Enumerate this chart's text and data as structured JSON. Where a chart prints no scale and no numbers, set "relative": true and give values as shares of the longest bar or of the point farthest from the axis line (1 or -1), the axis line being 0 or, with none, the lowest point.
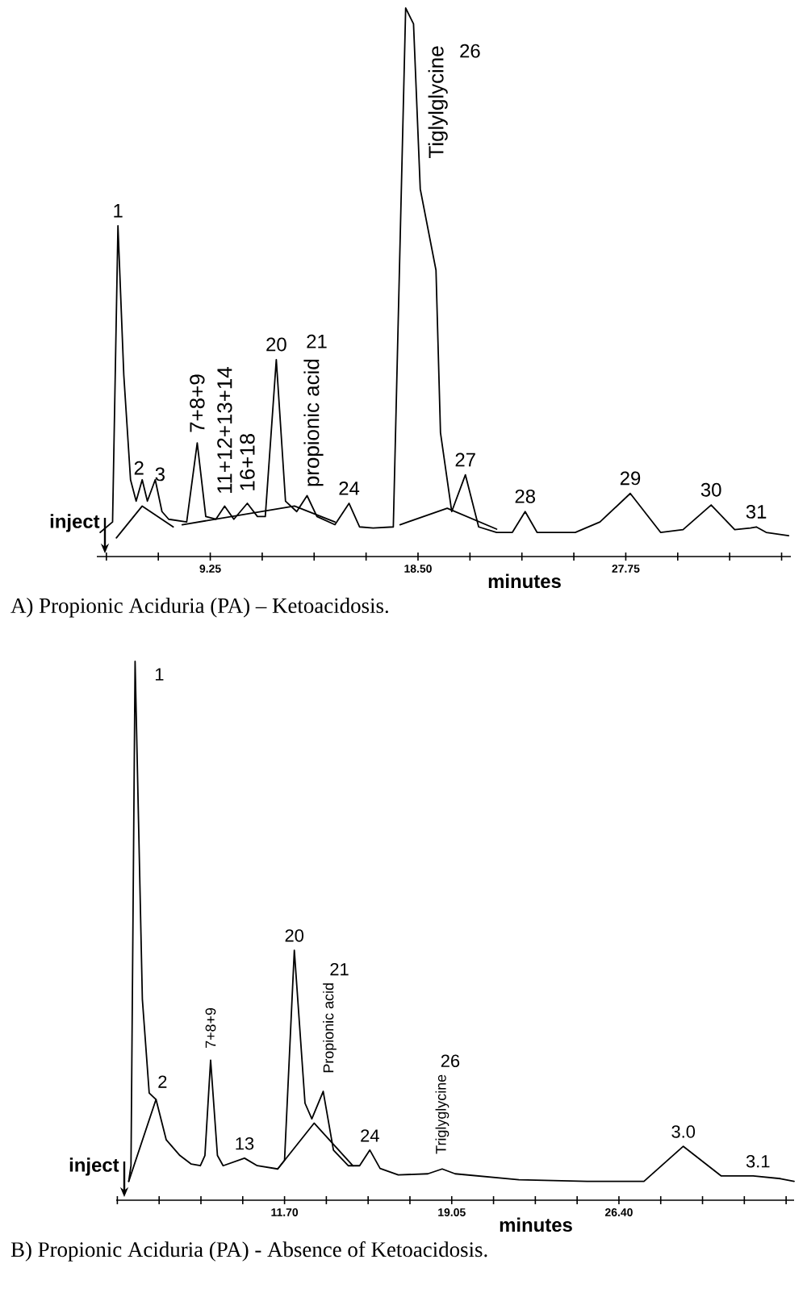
{
  "chart_data": [
    {
      "type": "line",
      "title": "A) Propionic Aciduria (PA) – Ketoacidosis.",
      "xlabel": "minutes",
      "relative": true,
      "xlim": [
        4.2,
        35.1
      ],
      "xticks": [
        {
          "value": 4.625,
          "label": null
        },
        {
          "value": 6.9375,
          "label": null
        },
        9.25,
        {
          "value": 11.5625,
          "label": null
        },
        {
          "value": 13.875,
          "label": null
        },
        {
          "value": 16.1875,
          "label": null
        },
        {
          "value": 18.5,
          "label": "18.50"
        },
        {
          "value": 20.8125,
          "label": null
        },
        {
          "value": 23.125,
          "label": null
        },
        {
          "value": 25.4375,
          "label": null
        },
        27.75,
        {
          "value": 30.0625,
          "label": null
        },
        {
          "value": 32.375,
          "label": null
        },
        {
          "value": 34.6875,
          "label": null
        }
      ],
      "series": [
        {
          "color": "#000000",
          "x": [
            4.35,
            4.9,
            5.14,
            5.4,
            5.7,
            5.95,
            6.22,
            6.45,
            6.8,
            7.1,
            7.4,
            8.2,
            8.67,
            9.05,
            9.5,
            9.89,
            10.3,
            10.9,
            11.35,
            11.7,
            12.19,
            12.6,
            13.1,
            13.56,
            14.0,
            14.8,
            15.43,
            15.9,
            16.5,
            17.4,
            17.95,
            18.3,
            18.6,
            19.3,
            19.5,
            20.0,
            20.61,
            21.2,
            22.0,
            22.7,
            23.27,
            23.8,
            25.5,
            26.6,
            27.95,
            29.3,
            30.3,
            31.55,
            32.6,
            33.3,
            33.56,
            34.0,
            35.0
          ],
          "values": [
            0.044,
            0.063,
            0.603,
            0.331,
            0.14,
            0.101,
            0.14,
            0.101,
            0.14,
            0.082,
            0.068,
            0.063,
            0.207,
            0.073,
            0.068,
            0.092,
            0.068,
            0.097,
            0.073,
            0.073,
            0.359,
            0.101,
            0.082,
            0.111,
            0.073,
            0.058,
            0.097,
            0.054,
            0.052,
            0.054,
            1.0,
            0.971,
            0.67,
            0.522,
            0.226,
            0.082,
            0.149,
            0.054,
            0.044,
            0.044,
            0.082,
            0.044,
            0.044,
            0.063,
            0.115,
            0.044,
            0.049,
            0.094,
            0.049,
            0.052,
            0.054,
            0.044,
            0.038
          ]
        },
        {
          "color": "#000000",
          "x": [
            5.07,
            6.22,
            7.6,
            7.8,
            8.0,
            13.0,
            14.8,
            16.0,
            17.7,
            19.8,
            22.0
          ],
          "values": [
            0.034,
            0.092,
            0.054,
            null,
            0.058,
            0.092,
            0.063,
            null,
            0.058,
            0.088,
            0.05
          ]
        }
      ],
      "annotations": [
        "inject",
        {
          "text": "1",
          "x": 5.14,
          "y": 0.603
        },
        {
          "text": "2",
          "x": 6.22,
          "y": 0.14
        },
        {
          "text": "3",
          "x": 6.8,
          "y": 0.14
        },
        {
          "text": "7+8+9",
          "x": 8.67,
          "y": 0.207
        },
        {
          "text": "11+12+13+14",
          "x": 9.89,
          "y": 0.092
        },
        {
          "text": "16+18",
          "x": 10.9,
          "y": 0.097
        },
        {
          "text": "20",
          "x": 12.19,
          "y": 0.359
        },
        "21",
        {
          "text": "propionic acid",
          "x": 13.56,
          "y": 0.111
        },
        {
          "text": "24",
          "x": 15.43,
          "y": 0.097
        },
        {
          "text": "Tiglylglycine",
          "x": 17.95,
          "y": 1.0
        },
        "26",
        {
          "text": "27",
          "x": 20.61,
          "y": 0.149
        },
        {
          "text": "28",
          "x": 23.27,
          "y": 0.082
        },
        {
          "text": "29",
          "x": 27.95,
          "y": 0.115
        },
        {
          "text": "30",
          "x": 31.55,
          "y": 0.094
        },
        {
          "text": "31",
          "x": 33.56,
          "y": 0.054
        }
      ]
    },
    {
      "type": "line",
      "title": "B) Propionic Aciduria (PA) - Absence of Ketoacidosis.",
      "xlabel": "minutes",
      "relative": true,
      "xlim": [
        4.3,
        34.1
      ],
      "xticks": [
        {
          "value": 4.35,
          "label": null
        },
        {
          "value": 6.1875,
          "label": null
        },
        {
          "value": 8.025,
          "label": null
        },
        {
          "value": 9.8625,
          "label": null
        },
        {
          "value": 11.7,
          "label": "11.70"
        },
        {
          "value": 13.5375,
          "label": null
        },
        {
          "value": 15.375,
          "label": null
        },
        {
          "value": 17.2125,
          "label": null
        },
        19.05,
        {
          "value": 20.8875,
          "label": null
        },
        {
          "value": 22.725,
          "label": null
        },
        {
          "value": 24.5625,
          "label": null
        },
        {
          "value": 26.4,
          "label": "26.40"
        },
        {
          "value": 28.2375,
          "label": null
        },
        {
          "value": 30.075,
          "label": null
        },
        {
          "value": 31.9125,
          "label": null
        },
        {
          "value": 33.75,
          "label": null
        }
      ],
      "series": [
        {
          "color": "#000000",
          "x": [
            4.85,
            4.95,
            5.13,
            5.45,
            5.75,
            6.05,
            6.5,
            7.1,
            7.6,
            8.0,
            8.2,
            8.45,
            8.75,
            9.0,
            9.94,
            10.5,
            11.4,
            11.7,
            12.13,
            12.6,
            12.9,
            13.4,
            13.85,
            14.5,
            15.0,
            15.45,
            15.9,
            16.7,
            18.0,
            18.63,
            19.2,
            22.0,
            25.0,
            27.5,
            29.23,
            30.9,
            32.3,
            33.5,
            34.1
          ],
          "values": [
            0.035,
            0.064,
            1.0,
            0.373,
            0.199,
            0.187,
            0.112,
            0.083,
            0.067,
            0.064,
            0.083,
            0.26,
            0.083,
            0.064,
            0.078,
            0.064,
            0.058,
            0.074,
            0.464,
            0.18,
            0.151,
            0.202,
            0.093,
            0.064,
            0.064,
            0.093,
            0.059,
            0.047,
            0.049,
            0.058,
            0.049,
            0.038,
            0.035,
            0.035,
            0.1,
            0.045,
            0.045,
            0.04,
            0.035
          ]
        },
        {
          "color": "#000000",
          "x": [
            4.85,
            6.05,
            8.0,
            11.4,
            13.0,
            14.7
          ],
          "values": [
            0.035,
            0.187,
            null,
            0.058,
            0.143,
            0.064
          ]
        }
      ],
      "annotations": [
        "inject",
        {
          "text": "1",
          "x": 5.13,
          "y": 1.0
        },
        {
          "text": "2",
          "x": 6.05,
          "y": 0.187
        },
        {
          "text": "7+8+9",
          "x": 8.45,
          "y": 0.26
        },
        {
          "text": "13",
          "x": 9.94,
          "y": 0.078
        },
        {
          "text": "20",
          "x": 12.13,
          "y": 0.464
        },
        "21",
        {
          "text": "Propionic acid",
          "x": 13.4,
          "y": 0.202
        },
        {
          "text": "24",
          "x": 15.45,
          "y": 0.093
        },
        {
          "text": "Triglyglycine",
          "x": 18.63,
          "y": 0.058
        },
        "26",
        {
          "text": "3.0",
          "x": 29.23,
          "y": 0.1
        },
        {
          "text": "3.1",
          "x": 32.3,
          "y": 0.045
        }
      ]
    }
  ]
}
